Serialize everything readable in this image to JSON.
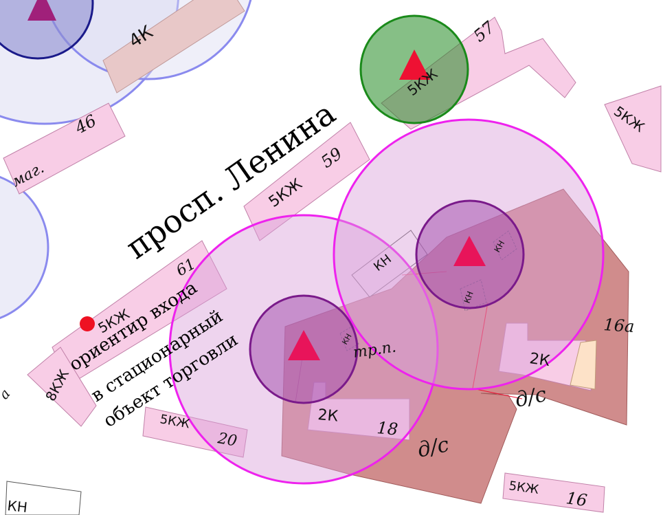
{
  "street_name": "просп. Ленина",
  "landmark_note": {
    "line1": "ориентир входа",
    "line2": "в стационарный",
    "line3": "объект торговли"
  },
  "buildings": {
    "b4k": "4К",
    "b46_type": "маг.",
    "b46_num": "46",
    "b57_num": "57",
    "b57_type": "5КЖ",
    "b59_type": "5КЖ",
    "b59_num": "59",
    "b61_type": "5КЖ",
    "b61_num": "61",
    "b8kzh": "8КЖ",
    "b20_type": "5КЖ",
    "b20_num": "20",
    "b18_type": "2К",
    "b18_num": "18",
    "b16a_type": "2К",
    "b16a_num": "16а",
    "b16_type": "5КЖ",
    "b16_num": "16",
    "bright_type": "5КЖ",
    "bottom_left": "КН",
    "left_a": "а"
  },
  "small_structures": {
    "kn_main": "КН",
    "kn_2": "КН",
    "kn_3": "КН",
    "kn_4": "КН"
  },
  "zones": {
    "ds_lower": "д/с",
    "ds_upper": "д/с",
    "tp": "тр.п."
  },
  "colors": {
    "magenta_circle": "#ee22ee",
    "purple_circle": "#7a1a8a",
    "green_circle": "#1a8a1a",
    "blue_circle": "#8a8aee",
    "navy_circle": "#1a1a8a",
    "marker_red": "#ee1133",
    "building_fill": "#f8cde6",
    "courtyard_fill": "#c87878"
  }
}
